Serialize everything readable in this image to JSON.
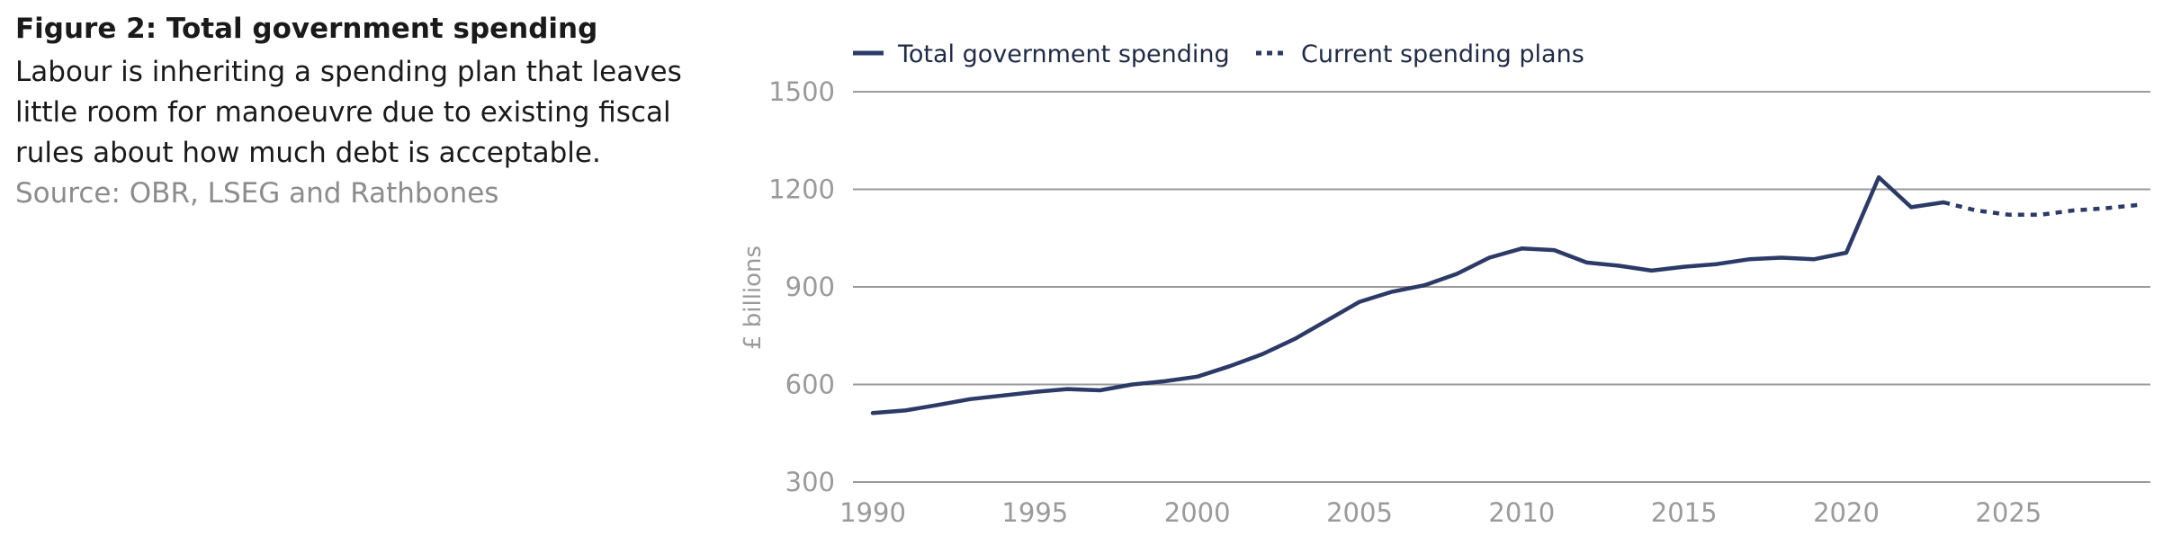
{
  "figure": {
    "title": "Figure 2: Total government spending",
    "subtitle": "Labour is inheriting a spending plan that leaves little room for manoeuvre due to existing fiscal rules about how much debt is acceptable.",
    "source": "Source: OBR, LSEG and Rathbones"
  },
  "chart_data": {
    "type": "line",
    "ylabel": "£ billions",
    "xlabel": "",
    "ylim": [
      300,
      1500
    ],
    "xlim": [
      1990,
      2029
    ],
    "yticks": [
      300,
      600,
      900,
      1200,
      1500
    ],
    "xticks": [
      1990,
      1995,
      2000,
      2005,
      2010,
      2015,
      2020,
      2025
    ],
    "grid": "horizontal",
    "legend_position": "top",
    "colors": {
      "series": "#2b3a67",
      "grid": "#9a9a9a"
    },
    "series": [
      {
        "name": "Total government spending",
        "style": "solid",
        "x": [
          1990,
          1991,
          1992,
          1993,
          1994,
          1995,
          1996,
          1997,
          1998,
          1999,
          2000,
          2001,
          2002,
          2003,
          2004,
          2005,
          2006,
          2007,
          2008,
          2009,
          2010,
          2011,
          2012,
          2013,
          2014,
          2015,
          2016,
          2017,
          2018,
          2019,
          2020,
          2021,
          2022,
          2023
        ],
        "values": [
          512,
          520,
          537,
          555,
          566,
          577,
          586,
          582,
          600,
          610,
          624,
          656,
          693,
          740,
          797,
          854,
          885,
          905,
          940,
          990,
          1018,
          1013,
          975,
          965,
          950,
          962,
          970,
          985,
          990,
          985,
          1005,
          1237,
          1145,
          1160
        ]
      },
      {
        "name": "Current spending plans",
        "style": "dotted",
        "x": [
          2023,
          2024,
          2025,
          2026,
          2027,
          2028,
          2029
        ],
        "values": [
          1160,
          1135,
          1122,
          1122,
          1135,
          1142,
          1152
        ]
      }
    ]
  }
}
